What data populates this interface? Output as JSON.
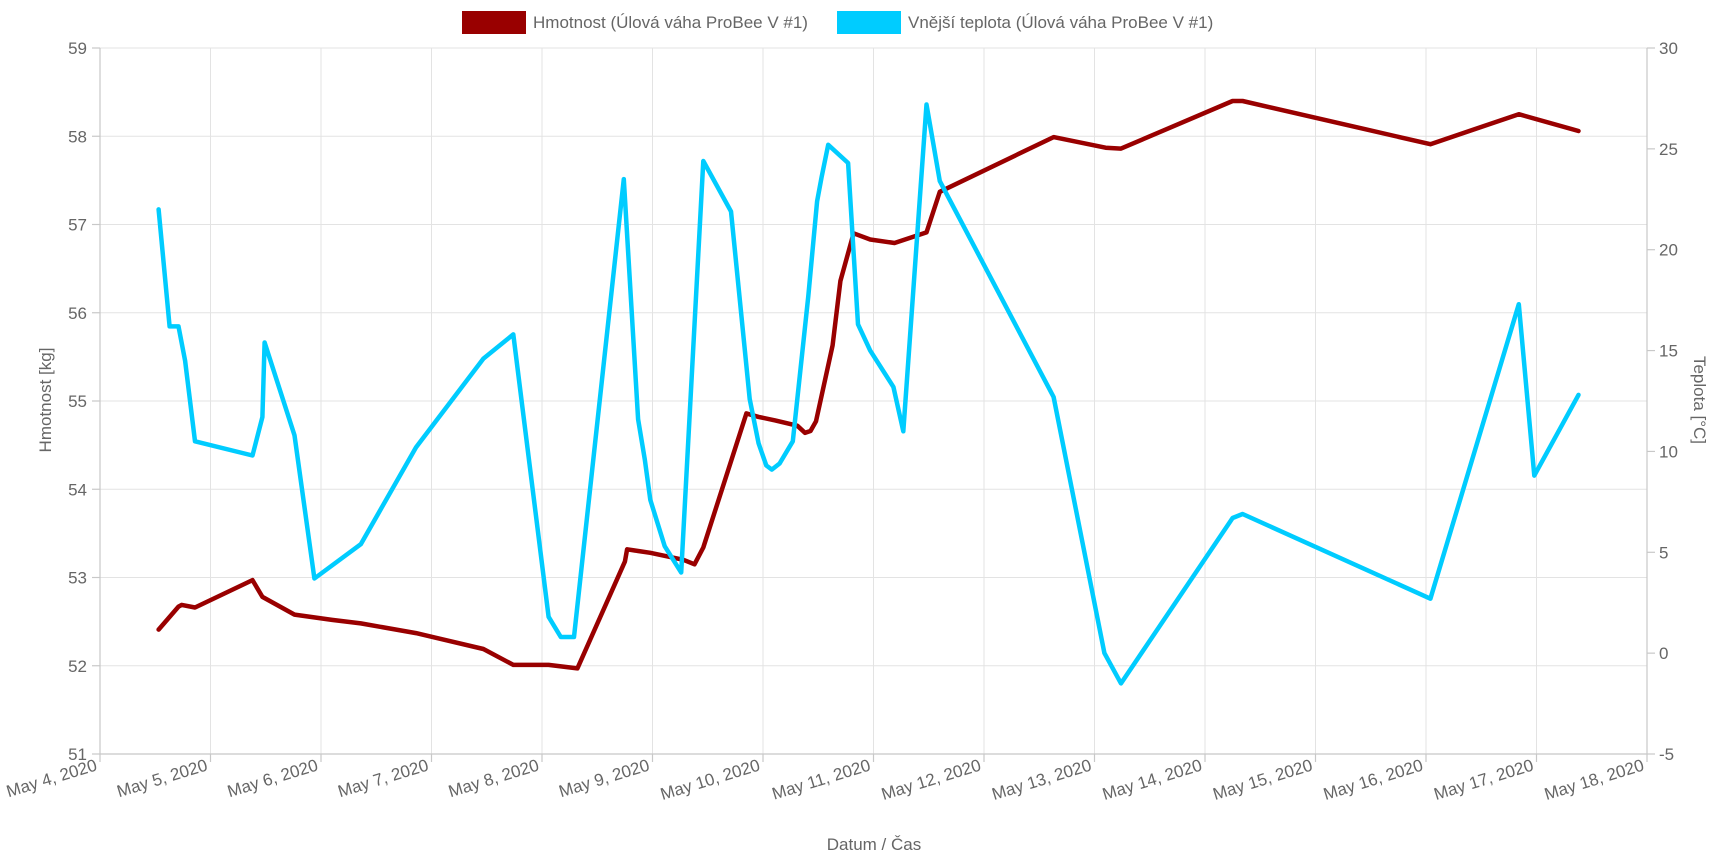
{
  "chart_data": {
    "type": "line",
    "title": "",
    "xlabel": "Datum / Čas",
    "ylabel_left": "Hmotnost [kg]",
    "ylabel_right": "Teplota [°C]",
    "ylim_left": [
      51,
      59
    ],
    "ylim_right": [
      -5,
      30
    ],
    "y_ticks_left": [
      "59",
      "58",
      "57",
      "56",
      "55",
      "54",
      "53",
      "52",
      "51"
    ],
    "y_ticks_right": [
      "30",
      "25",
      "20",
      "15",
      "10",
      "5",
      "0",
      "-5"
    ],
    "x_range_days": [
      0,
      14
    ],
    "x_ticks": [
      "May 4, 2020",
      "May 5, 2020",
      "May 6, 2020",
      "May 7, 2020",
      "May 8, 2020",
      "May 9, 2020",
      "May 10, 2020",
      "May 11, 2020",
      "May 12, 2020",
      "May 13, 2020",
      "May 14, 2020",
      "May 15, 2020",
      "May 16, 2020",
      "May 17, 2020",
      "May 18, 2020"
    ],
    "grid": true,
    "legend_position": "top-center",
    "series": [
      {
        "name": "Hmotnost (Úlová váha ProBee V #1)",
        "color": "#990000",
        "axis": "left",
        "x": [
          0.53,
          0.71,
          0.74,
          0.86,
          1.38,
          1.47,
          1.76,
          2.1,
          2.36,
          2.86,
          3.47,
          3.74,
          4.06,
          4.32,
          4.75,
          4.77,
          4.87,
          4.98,
          5.13,
          5.28,
          5.38,
          5.46,
          5.85,
          5.96,
          6.11,
          6.31,
          6.38,
          6.43,
          6.48,
          6.63,
          6.7,
          6.82,
          6.97,
          7.19,
          7.48,
          7.6,
          8.63,
          9.1,
          9.24,
          10.25,
          10.34,
          12.04,
          12.84,
          13.38
        ],
        "y": [
          52.41,
          52.67,
          52.69,
          52.66,
          52.97,
          52.78,
          52.58,
          52.52,
          52.48,
          52.37,
          52.19,
          52.01,
          52.01,
          51.97,
          53.18,
          53.32,
          53.3,
          53.28,
          53.24,
          53.2,
          53.15,
          53.34,
          54.86,
          54.82,
          54.78,
          54.72,
          54.64,
          54.66,
          54.77,
          55.63,
          56.36,
          56.9,
          56.83,
          56.79,
          56.91,
          57.37,
          57.99,
          57.87,
          57.86,
          58.4,
          58.4,
          57.91,
          58.25,
          58.06
        ]
      },
      {
        "name": "Vnější teplota (Úlová váha ProBee V #1)",
        "color": "#00ccff",
        "axis": "right",
        "x": [
          0.53,
          0.63,
          0.71,
          0.77,
          0.86,
          1.38,
          1.47,
          1.49,
          1.76,
          1.94,
          2.36,
          2.86,
          3.47,
          3.74,
          4.06,
          4.17,
          4.29,
          4.74,
          4.87,
          4.93,
          4.98,
          5.11,
          5.26,
          5.46,
          5.71,
          5.88,
          5.96,
          6.03,
          6.08,
          6.15,
          6.27,
          6.41,
          6.49,
          6.53,
          6.59,
          6.77,
          6.86,
          6.97,
          7.18,
          7.27,
          7.48,
          7.6,
          8.63,
          9.09,
          9.24,
          10.25,
          10.34,
          12.04,
          12.84,
          12.98,
          13.38
        ],
        "y": [
          22.0,
          16.2,
          16.2,
          14.5,
          10.5,
          9.8,
          11.7,
          15.4,
          10.8,
          3.7,
          5.4,
          10.2,
          14.6,
          15.8,
          1.8,
          0.8,
          0.8,
          23.5,
          11.6,
          9.6,
          7.6,
          5.3,
          4.0,
          24.4,
          21.9,
          12.6,
          10.4,
          9.3,
          9.1,
          9.4,
          10.5,
          17.7,
          22.4,
          23.6,
          25.2,
          24.3,
          16.3,
          15.0,
          13.2,
          11.0,
          27.2,
          23.4,
          12.7,
          0.0,
          -1.5,
          6.7,
          6.9,
          2.7,
          17.3,
          8.8,
          12.8
        ]
      }
    ]
  }
}
